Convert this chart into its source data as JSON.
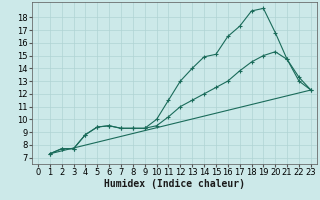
{
  "bg_color": "#cce9e9",
  "grid_color": "#b0d4d4",
  "line_color": "#1a6b5a",
  "xlabel": "Humidex (Indice chaleur)",
  "xlabel_fontsize": 7,
  "tick_fontsize": 6,
  "xlim": [
    -0.5,
    23.5
  ],
  "ylim": [
    6.5,
    19.2
  ],
  "yticks": [
    7,
    8,
    9,
    10,
    11,
    12,
    13,
    14,
    15,
    16,
    17,
    18
  ],
  "xticks": [
    0,
    1,
    2,
    3,
    4,
    5,
    6,
    7,
    8,
    9,
    10,
    11,
    12,
    13,
    14,
    15,
    16,
    17,
    18,
    19,
    20,
    21,
    22,
    23
  ],
  "curve1_x": [
    1,
    2,
    3,
    4,
    5,
    6,
    7,
    8,
    9,
    10,
    11,
    12,
    13,
    14,
    15,
    16,
    17,
    18,
    19,
    20,
    21,
    22,
    23
  ],
  "curve1_y": [
    7.3,
    7.7,
    7.7,
    8.8,
    9.4,
    9.5,
    9.3,
    9.3,
    9.3,
    10.0,
    11.5,
    13.0,
    14.0,
    14.9,
    15.1,
    16.5,
    17.3,
    18.5,
    18.7,
    16.8,
    14.7,
    13.0,
    12.3
  ],
  "curve2_x": [
    1,
    2,
    3,
    4,
    5,
    6,
    7,
    8,
    9,
    10,
    11,
    12,
    13,
    14,
    15,
    16,
    17,
    18,
    19,
    20,
    21,
    22,
    23
  ],
  "curve2_y": [
    7.3,
    7.7,
    7.7,
    8.8,
    9.4,
    9.5,
    9.3,
    9.3,
    9.3,
    9.5,
    10.2,
    11.0,
    11.5,
    12.0,
    12.5,
    13.0,
    13.8,
    14.5,
    15.0,
    15.3,
    14.7,
    13.3,
    12.3
  ],
  "curve3_x": [
    1,
    23
  ],
  "curve3_y": [
    7.3,
    12.3
  ]
}
